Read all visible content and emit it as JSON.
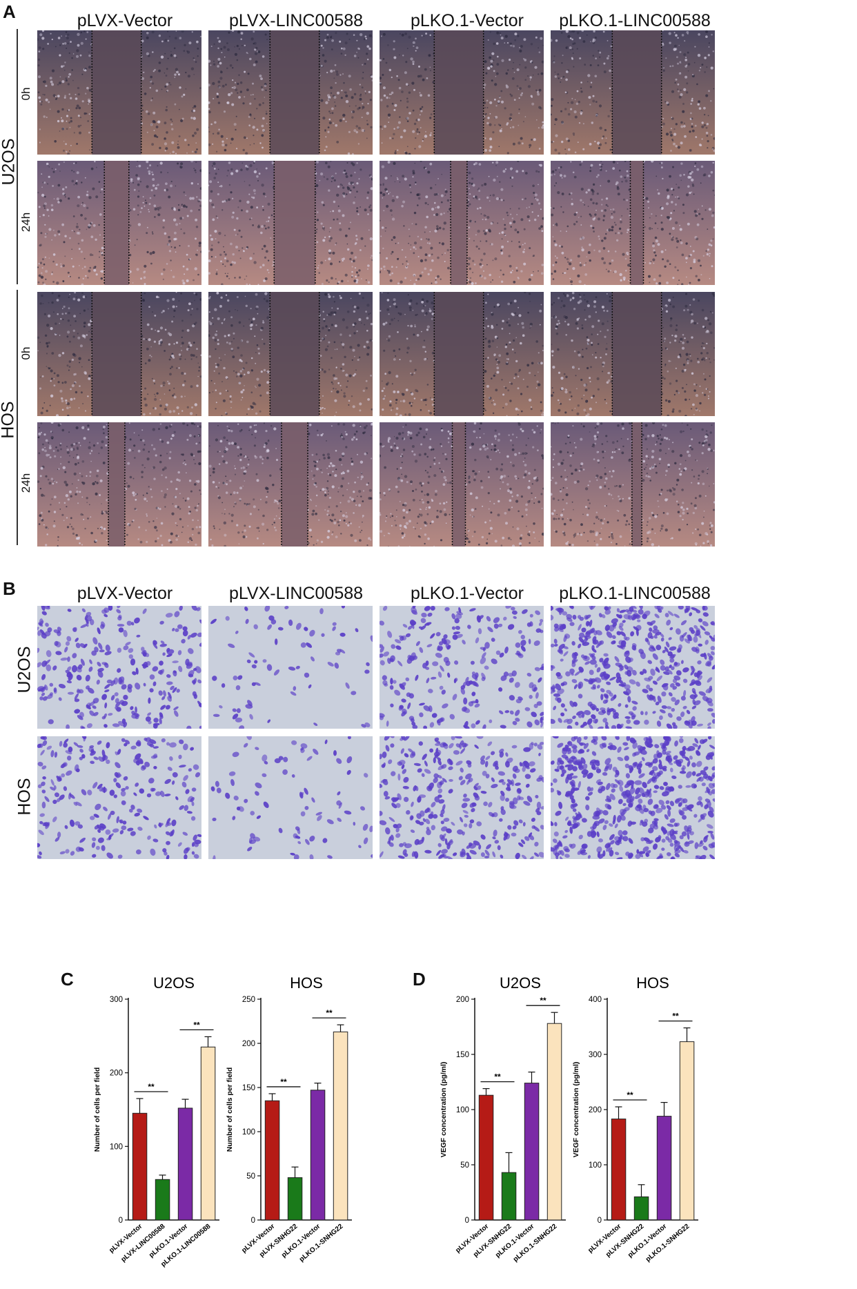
{
  "panel_a": {
    "letter": "A",
    "columns": [
      "pLVX-Vector",
      "pLVX-LINC00588",
      "pLKO.1-Vector",
      "pLKO.1-LINC00588"
    ],
    "groups": [
      {
        "name": "U2OS",
        "times": [
          "0h",
          "24h"
        ]
      },
      {
        "name": "HOS",
        "times": [
          "0h",
          "24h"
        ]
      }
    ],
    "wound_open_fraction": [
      [
        0.3,
        0.3,
        0.3,
        0.3
      ],
      [
        0.15,
        0.25,
        0.1,
        0.08
      ],
      [
        0.3,
        0.3,
        0.3,
        0.3
      ],
      [
        0.1,
        0.16,
        0.08,
        0.06
      ]
    ]
  },
  "panel_b": {
    "letter": "B",
    "columns": [
      "pLVX-Vector",
      "pLVX-LINC00588",
      "pLKO.1-Vector",
      "pLKO.1-LINC00588"
    ],
    "rows": [
      "U2OS",
      "HOS"
    ],
    "cell_density": [
      [
        0.45,
        0.08,
        0.4,
        0.85
      ],
      [
        0.4,
        0.1,
        0.55,
        1.0
      ]
    ],
    "stain_color": "#5b3fc7",
    "background_color": "#c9cfdc"
  },
  "colors": {
    "bar1": "#b51b16",
    "bar2": "#1a7a1a",
    "bar3": "#7b2aa6",
    "bar4": "#fbe3bd"
  },
  "chart_data": [
    {
      "panel": "C",
      "type": "bar",
      "title": "U2OS",
      "ylabel": "Number of cells per field",
      "ylim": [
        0,
        300
      ],
      "yticks": [
        "0",
        "100",
        "200",
        "300"
      ],
      "categories": [
        "pLVX-Vector",
        "pLVX-LINC00588",
        "pLKO.1-Vector",
        "pLKO.1-LINC00588"
      ],
      "values": [
        145,
        55,
        152,
        235
      ],
      "errors": [
        20,
        6,
        12,
        14
      ],
      "significance": [
        {
          "from": 0,
          "to": 1,
          "label": "**"
        },
        {
          "from": 2,
          "to": 3,
          "label": "**"
        }
      ]
    },
    {
      "panel": "",
      "type": "bar",
      "title": "HOS",
      "ylabel": "Number of cells per field",
      "ylim": [
        0,
        250
      ],
      "yticks": [
        "0",
        "50",
        "100",
        "150",
        "200",
        "250"
      ],
      "categories": [
        "pLVX-Vector",
        "pLVX-SNHG22",
        "pLKO.1-Vector",
        "pLKO.1-SNHG22"
      ],
      "values": [
        135,
        48,
        147,
        213
      ],
      "errors": [
        8,
        12,
        8,
        8
      ],
      "significance": [
        {
          "from": 0,
          "to": 1,
          "label": "**"
        },
        {
          "from": 2,
          "to": 3,
          "label": "**"
        }
      ]
    },
    {
      "panel": "D",
      "type": "bar",
      "title": "U2OS",
      "ylabel": "VEGF concentration (pg/ml)",
      "ylim": [
        0,
        200
      ],
      "yticks": [
        "0",
        "50",
        "100",
        "150",
        "200"
      ],
      "categories": [
        "pLVX-Vector",
        "pLVX-SNHG22",
        "pLKO.1-Vector",
        "pLKO.1-SNHG22"
      ],
      "values": [
        113,
        43,
        124,
        178
      ],
      "errors": [
        6,
        18,
        10,
        10
      ],
      "significance": [
        {
          "from": 0,
          "to": 1,
          "label": "**"
        },
        {
          "from": 2,
          "to": 3,
          "label": "**"
        }
      ]
    },
    {
      "panel": "",
      "type": "bar",
      "title": "HOS",
      "ylabel": "VEGF concentration (pg/ml)",
      "ylim": [
        0,
        400
      ],
      "yticks": [
        "0",
        "100",
        "200",
        "300",
        "400"
      ],
      "categories": [
        "pLVX-Vector",
        "pLVX-SNHG22",
        "pLKO.1-Vector",
        "pLKO.1-SNHG22"
      ],
      "values": [
        183,
        42,
        188,
        323
      ],
      "errors": [
        22,
        22,
        25,
        25
      ],
      "significance": [
        {
          "from": 0,
          "to": 1,
          "label": "**"
        },
        {
          "from": 2,
          "to": 3,
          "label": "**"
        }
      ]
    }
  ]
}
